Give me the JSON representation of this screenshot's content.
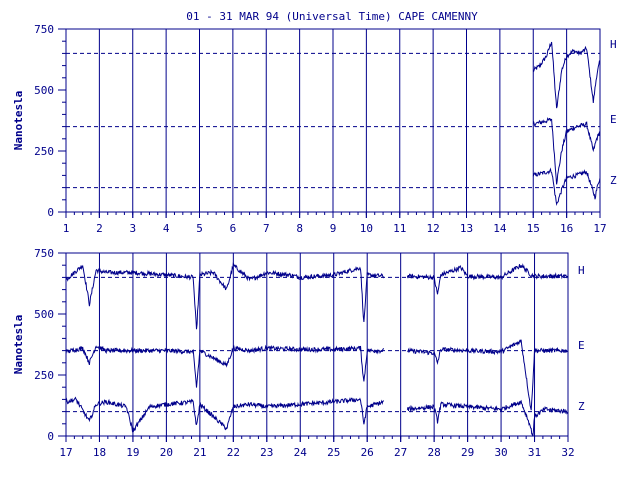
{
  "colors": {
    "ink": "#00008b",
    "background": "#ffffff"
  },
  "chart_data": {
    "type": "line",
    "title": "01 - 31 MAR 94 (Universal Time) CAPE CAMENNY",
    "ylabel": "Nanotesla",
    "units": "nT",
    "grid": "vertical lines at each day; dashed reference lines for each component",
    "ylim": [
      0,
      750
    ],
    "y_ticks": [
      0,
      250,
      500,
      750
    ],
    "components": [
      "H",
      "E",
      "Z"
    ],
    "baselines": {
      "H": 650,
      "E": 350,
      "Z": 100
    },
    "panels": [
      {
        "name": "days-1-to-17",
        "xlim": [
          1,
          17
        ],
        "x_ticks": [
          1,
          2,
          3,
          4,
          5,
          6,
          7,
          8,
          9,
          10,
          11,
          12,
          13,
          14,
          15,
          16,
          17
        ],
        "data_start": 15.0,
        "data_end": 17.0,
        "series": [
          {
            "name": "H",
            "x": [
              15.0,
              15.2,
              15.4,
              15.55,
              15.7,
              15.85,
              16.0,
              16.2,
              16.4,
              16.6,
              16.8,
              16.9,
              17.0
            ],
            "y": [
              580,
              600,
              640,
              700,
              420,
              580,
              640,
              660,
              650,
              670,
              450,
              560,
              620
            ]
          },
          {
            "name": "E",
            "x": [
              15.0,
              15.3,
              15.55,
              15.7,
              15.85,
              16.0,
              16.3,
              16.6,
              16.8,
              16.9,
              17.0
            ],
            "y": [
              360,
              370,
              380,
              120,
              250,
              330,
              350,
              360,
              250,
              300,
              330
            ]
          },
          {
            "name": "Z",
            "x": [
              15.0,
              15.3,
              15.55,
              15.7,
              15.85,
              16.0,
              16.3,
              16.6,
              16.85,
              16.95,
              17.0
            ],
            "y": [
              150,
              160,
              170,
              30,
              90,
              140,
              150,
              165,
              60,
              120,
              140
            ]
          }
        ]
      },
      {
        "name": "days-17-to-32",
        "xlim": [
          17,
          32
        ],
        "x_ticks": [
          17,
          18,
          19,
          20,
          21,
          22,
          23,
          24,
          25,
          26,
          27,
          28,
          29,
          30,
          31,
          32
        ],
        "data_start": 17.0,
        "data_end": 32.0,
        "gaps": [
          [
            26.5,
            27.2
          ]
        ],
        "series": [
          {
            "name": "H",
            "x": [
              17.0,
              17.5,
              17.7,
              17.9,
              18.2,
              19.0,
              20.0,
              20.8,
              20.9,
              21.0,
              21.4,
              21.8,
              22.0,
              22.5,
              23.0,
              23.7,
              24.0,
              25.0,
              25.8,
              25.9,
              26.0,
              26.5,
              27.2,
              28.0,
              28.1,
              28.2,
              28.8,
              29.0,
              30.0,
              30.6,
              30.9,
              31.0,
              31.5,
              32.0
            ],
            "y": [
              640,
              700,
              540,
              680,
              670,
              670,
              660,
              650,
              430,
              660,
              670,
              600,
              700,
              640,
              670,
              660,
              650,
              660,
              690,
              460,
              660,
              655,
              655,
              650,
              580,
              660,
              690,
              655,
              650,
              700,
              660,
              655,
              655,
              655
            ]
          },
          {
            "name": "E",
            "x": [
              17.0,
              17.5,
              17.7,
              17.9,
              18.2,
              19.0,
              20.0,
              20.8,
              20.9,
              21.0,
              21.8,
              22.0,
              22.5,
              23.0,
              24.0,
              25.0,
              25.8,
              25.9,
              26.0,
              26.5,
              27.2,
              28.0,
              28.1,
              28.2,
              29.0,
              30.0,
              30.6,
              30.9,
              31.0,
              31.5,
              32.0
            ],
            "y": [
              345,
              360,
              300,
              370,
              350,
              350,
              350,
              345,
              200,
              350,
              290,
              360,
              350,
              360,
              355,
              355,
              360,
              220,
              350,
              350,
              350,
              340,
              300,
              355,
              350,
              345,
              390,
              100,
              350,
              350,
              350
            ]
          },
          {
            "name": "Z",
            "x": [
              17.0,
              17.3,
              17.7,
              17.9,
              18.2,
              18.8,
              19.0,
              19.5,
              20.0,
              20.8,
              20.9,
              21.0,
              21.8,
              22.0,
              22.5,
              23.0,
              24.0,
              25.0,
              25.8,
              25.9,
              26.0,
              26.5,
              27.2,
              28.0,
              28.1,
              28.2,
              29.0,
              30.0,
              30.6,
              30.85,
              30.95,
              31.0,
              31.3,
              32.0
            ],
            "y": [
              140,
              150,
              60,
              130,
              140,
              120,
              20,
              120,
              130,
              140,
              40,
              130,
              30,
              120,
              130,
              120,
              130,
              140,
              150,
              50,
              120,
              140,
              110,
              120,
              60,
              130,
              120,
              110,
              140,
              50,
              0,
              80,
              110,
              100
            ]
          }
        ]
      }
    ]
  }
}
